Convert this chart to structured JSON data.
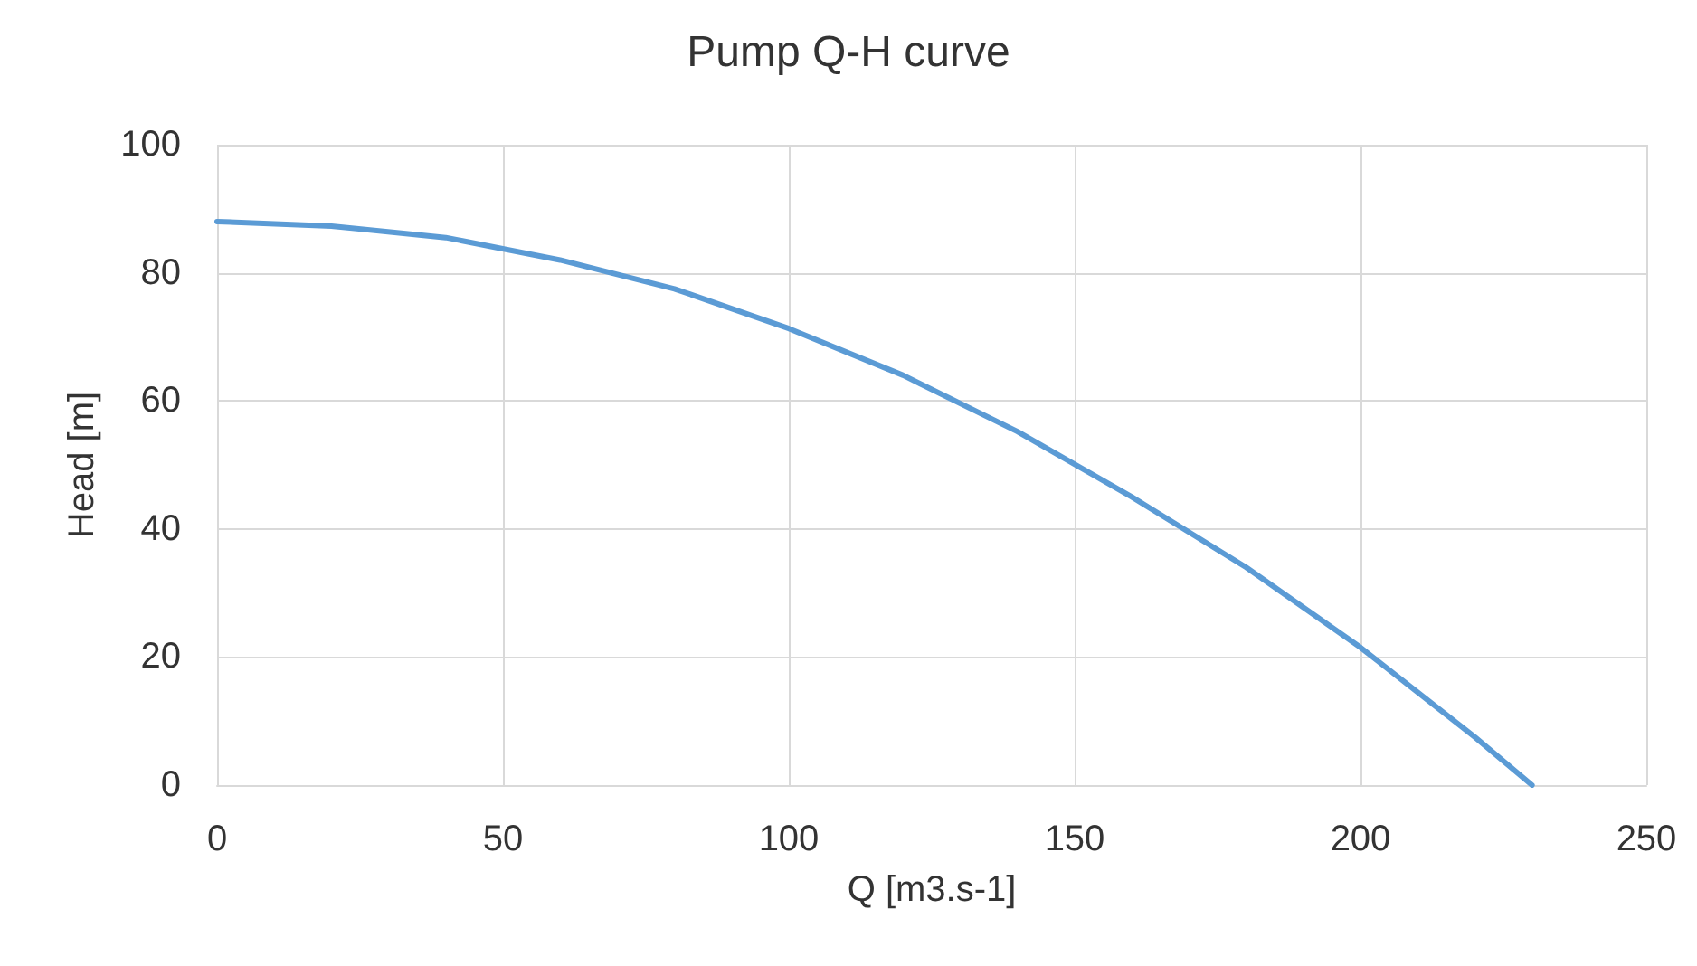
{
  "chart_data": {
    "type": "line",
    "title": "Pump Q-H curve",
    "xlabel": "Q [m3.s-1]",
    "ylabel": "Head [m]",
    "x": [
      0,
      20,
      40,
      60,
      80,
      100,
      120,
      140,
      160,
      180,
      200,
      220,
      230
    ],
    "series": [
      {
        "color": "#5b9bd5",
        "values": [
          88,
          87.3,
          85.5,
          82,
          77.5,
          71.3,
          64,
          55.2,
          45,
          34,
          21.5,
          7.5,
          0
        ]
      }
    ],
    "xlim": [
      0,
      250
    ],
    "xticks": [
      0,
      50,
      100,
      150,
      200,
      250
    ],
    "ylim": [
      0,
      100
    ],
    "yticks": [
      0,
      20,
      40,
      60,
      80,
      100
    ],
    "grid": true,
    "marker": "none",
    "line_style": "solid"
  }
}
